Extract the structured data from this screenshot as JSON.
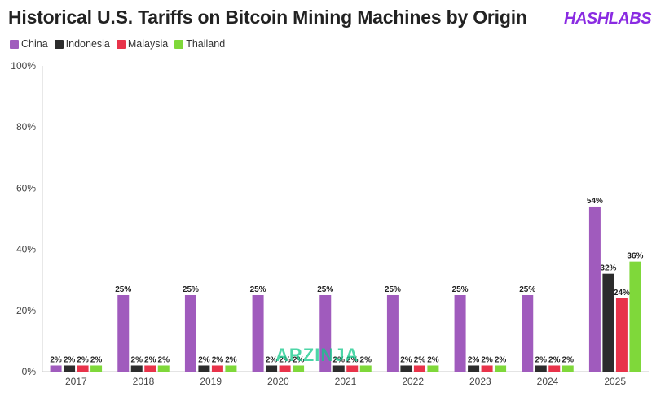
{
  "title": "Historical U.S. Tariffs on Bitcoin Mining Machines by Origin",
  "logo": {
    "text": "HASHLABS",
    "color": "#8a2be2"
  },
  "watermark": {
    "text": "ARZINJA",
    "color": "#12c98a"
  },
  "colors": {
    "China": "#a05bbd",
    "Indonesia": "#2c2c2c",
    "Malaysia": "#e8334a",
    "Thailand": "#7fd83a"
  },
  "chart_data": {
    "type": "bar",
    "categories": [
      "2017",
      "2018",
      "2019",
      "2020",
      "2021",
      "2022",
      "2023",
      "2024",
      "2025"
    ],
    "series": [
      {
        "name": "China",
        "values": [
          2,
          25,
          25,
          25,
          25,
          25,
          25,
          25,
          54
        ]
      },
      {
        "name": "Indonesia",
        "values": [
          2,
          2,
          2,
          2,
          2,
          2,
          2,
          2,
          32
        ]
      },
      {
        "name": "Malaysia",
        "values": [
          2,
          2,
          2,
          2,
          2,
          2,
          2,
          2,
          24
        ]
      },
      {
        "name": "Thailand",
        "values": [
          2,
          2,
          2,
          2,
          2,
          2,
          2,
          2,
          36
        ]
      }
    ],
    "ylim": [
      0,
      100
    ],
    "yticks": [
      0,
      20,
      40,
      60,
      80,
      100
    ],
    "ytick_labels": [
      "0%",
      "20%",
      "40%",
      "60%",
      "80%",
      "100%"
    ],
    "value_suffix": "%",
    "legend_position": "top-left",
    "grid": false
  }
}
